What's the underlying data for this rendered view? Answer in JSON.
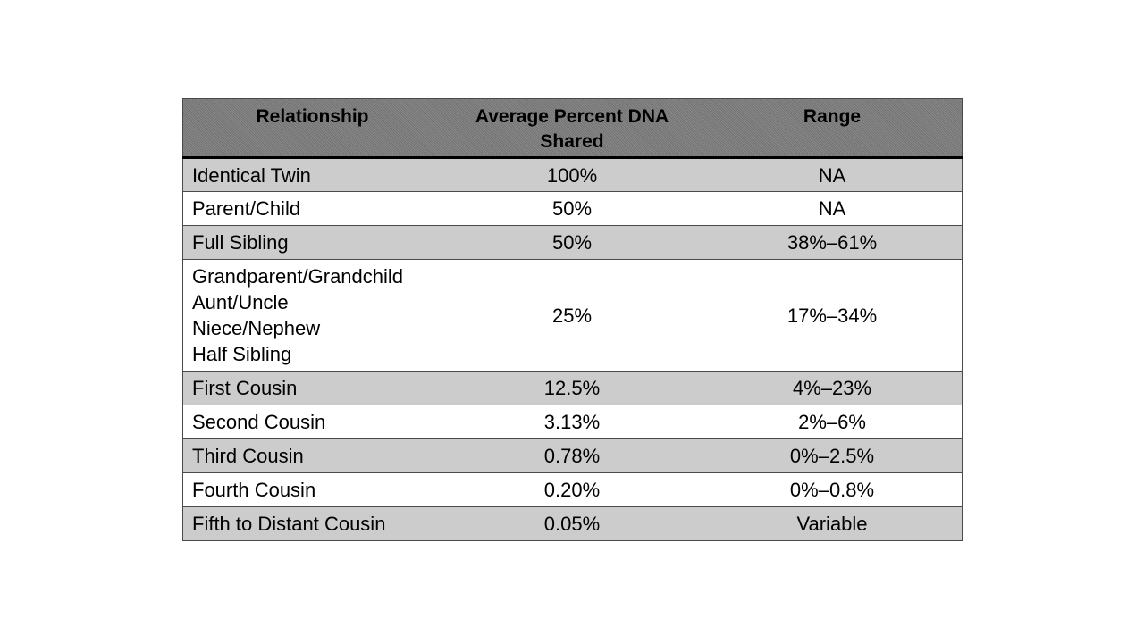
{
  "table": {
    "headers": {
      "relationship": "Relationship",
      "average": "Average Percent DNA Shared",
      "range": "Range"
    },
    "rows": [
      {
        "relationship": [
          "Identical Twin"
        ],
        "average": "100%",
        "range": "NA"
      },
      {
        "relationship": [
          "Parent/Child"
        ],
        "average": "50%",
        "range": "NA"
      },
      {
        "relationship": [
          "Full Sibling"
        ],
        "average": "50%",
        "range": "38%–61%"
      },
      {
        "relationship": [
          "Grandparent/Grandchild",
          "Aunt/Uncle",
          "Niece/Nephew",
          "Half Sibling"
        ],
        "average": "25%",
        "range": "17%–34%"
      },
      {
        "relationship": [
          "First Cousin"
        ],
        "average": "12.5%",
        "range": "4%–23%"
      },
      {
        "relationship": [
          "Second Cousin"
        ],
        "average": "3.13%",
        "range": "2%–6%"
      },
      {
        "relationship": [
          "Third Cousin"
        ],
        "average": "0.78%",
        "range": "0%–2.5%"
      },
      {
        "relationship": [
          "Fourth Cousin"
        ],
        "average": "0.20%",
        "range": "0%–0.8%"
      },
      {
        "relationship": [
          "Fifth to Distant Cousin"
        ],
        "average": "0.05%",
        "range": "Variable"
      }
    ]
  },
  "colors": {
    "header_fill": "#7a7a7a",
    "shaded_row": "#cccccc",
    "plain_row": "#ffffff",
    "border": "#4a4a4a"
  }
}
